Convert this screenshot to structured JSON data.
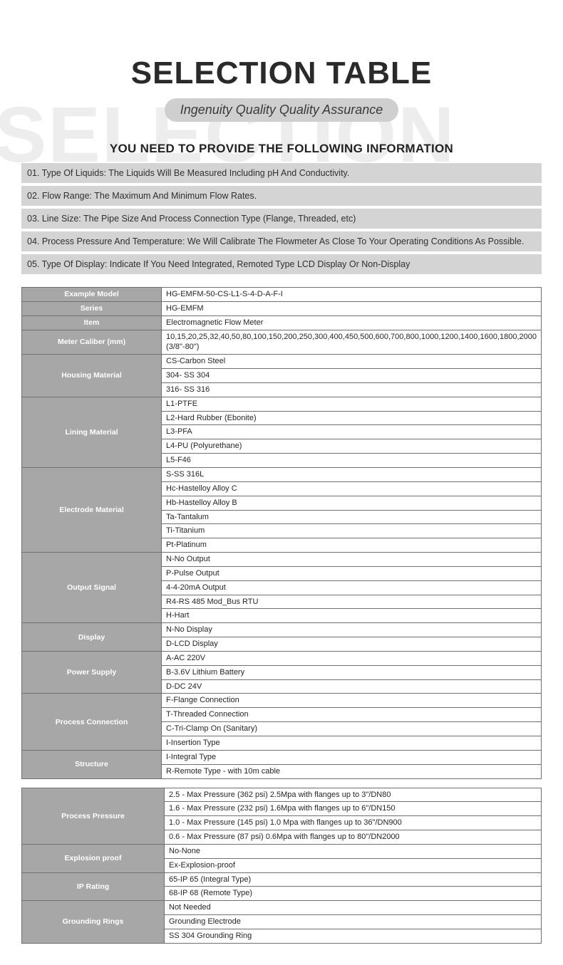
{
  "ghost": "SELECTION",
  "title": "SELECTION TABLE",
  "subtitle": "Ingenuity Quality Quality Assurance",
  "need_title": "YOU NEED TO PROVIDE THE FOLLOWING INFORMATION",
  "info_items": [
    "01. Type Of Liquids: The Liquids Will Be Measured Including pH And Conductivity.",
    "02. Flow Range: The Maximum And Minimum Flow Rates.",
    "03. Line Size: The Pipe Size And Process Connection Type (Flange, Threaded, etc)",
    "04. Process Pressure And Temperature: We Will Calibrate The Flowmeter As Close To Your Operating Conditions As Possible.",
    "05. Type Of Display: Indicate If You Need Integrated, Remoted Type LCD Display Or Non-Display"
  ],
  "table1": [
    {
      "label": "Example Model",
      "values": [
        "HG-EMFM-50-CS-L1-S-4-D-A-F-I"
      ]
    },
    {
      "label": "Series",
      "values": [
        "HG-EMFM"
      ]
    },
    {
      "label": "Item",
      "values": [
        "Electromagnetic Flow Meter"
      ]
    },
    {
      "label": "Meter Caliber (mm)",
      "values": [
        "10,15,20,25,32,40,50,80,100,150,200,250,300,400,450,500,600,700,800,1000,1200,1400,1600,1800,2000 (3/8\"-80\")"
      ]
    },
    {
      "label": "Housing Material",
      "values": [
        "CS-Carbon Steel",
        "304- SS 304",
        "316- SS 316"
      ]
    },
    {
      "label": "Lining Material",
      "values": [
        "L1-PTFE",
        "L2-Hard Rubber (Ebonite)",
        "L3-PFA",
        "L4-PU (Polyurethane)",
        "L5-F46"
      ]
    },
    {
      "label": "Electrode Material",
      "values": [
        "S-SS 316L",
        "Hc-Hastelloy Alloy C",
        "Hb-Hastelloy Alloy B",
        "Ta-Tantalum",
        "Ti-Titanium",
        "Pt-Platinum"
      ]
    },
    {
      "label": "Output Signal",
      "values": [
        "N-No Output",
        "P-Pulse Output",
        "4-4-20mA Output",
        "R4-RS 485 Mod_Bus RTU",
        "H-Hart"
      ]
    },
    {
      "label": "Display",
      "values": [
        "N-No Display",
        "D-LCD Display"
      ]
    },
    {
      "label": "Power Supply",
      "values": [
        "A-AC 220V",
        "B-3.6V Lithium Battery",
        "D-DC 24V"
      ]
    },
    {
      "label": "Process Connection",
      "values": [
        "F-Flange Connection",
        "T-Threaded Connection",
        "C-Tri-Clamp On (Sanitary)",
        "I-Insertion Type"
      ]
    },
    {
      "label": "Structure",
      "values": [
        "I-Integral Type",
        "R-Remote Type - with 10m cable"
      ]
    }
  ],
  "table2": [
    {
      "label": "Process Pressure",
      "values": [
        "2.5 - Max Pressure (362 psi) 2.5Mpa with flanges up to 3\"/DN80",
        "1.6 - Max Pressure (232 psi) 1.6Mpa with flanges up to 6\"/DN150",
        "1.0 - Max Pressure (145 psi) 1.0 Mpa with flanges up to 36\"/DN900",
        "0.6 - Max Pressure (87 psi) 0.6Mpa with flanges up to 80\"/DN2000"
      ]
    },
    {
      "label": "Explosion proof",
      "values": [
        "No-None",
        "Ex-Explosion-proof"
      ]
    },
    {
      "label": "IP Rating",
      "values": [
        "65-IP 65 (Integral Type)",
        "68-IP 68 (Remote Type)"
      ]
    },
    {
      "label": "Grounding Rings",
      "values": [
        "Not Needed",
        "Grounding Electrode",
        "SS 304 Grounding Ring"
      ]
    }
  ],
  "colors": {
    "ghost": "#ededed",
    "title": "#2a2a2a",
    "pill_bg": "#cfcfcf",
    "pill_text": "#3a3a3a",
    "info_bg": "#d4d4d4",
    "label_bg": "#a7a7a7",
    "label_text": "#ffffff",
    "border": "#707070",
    "value_text": "#262626"
  }
}
